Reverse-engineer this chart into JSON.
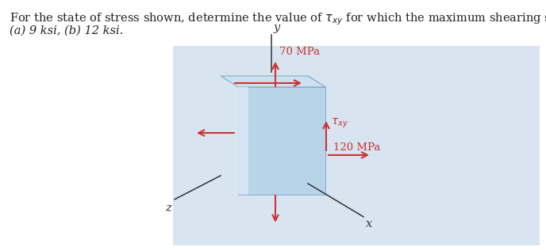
{
  "fig_bg_color": "#ffffff",
  "panel_bg_color": "#d8e4ef",
  "arrow_color": "#cc3333",
  "axis_color": "#333333",
  "box_front_color": "#b8d4e8",
  "box_top_color": "#cce0f0",
  "box_side_color": "#a8c4d8",
  "box_highlight_color": "#daeaf8",
  "label_70": "70 MPa",
  "label_120": "120 MPa",
  "label_txy": "$\\tau_{xy}$",
  "label_x": "x",
  "label_y": "y",
  "label_z": "z"
}
